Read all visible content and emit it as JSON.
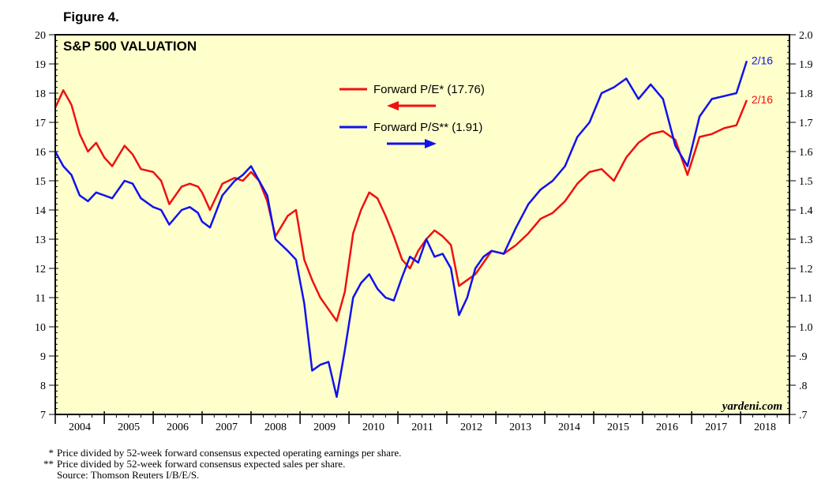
{
  "figure_label": "Figure 4.",
  "watermark": "yardeni.com",
  "colors": {
    "background": "#ffffcc",
    "pe": "#ee1111",
    "ps": "#1111ee",
    "frame": "#000000"
  },
  "footnotes": {
    "pe_mark": "*",
    "pe": "Price divided by 52-week forward consensus expected operating earnings per share.",
    "ps_mark": "**",
    "ps": "Price divided by 52-week forward consensus expected sales per share.",
    "source": "Source: Thomson Reuters I/B/E/S."
  },
  "chart_data": {
    "type": "line",
    "title": "S&P 500 VALUATION",
    "x_range": [
      "2004-01-01",
      "2019-01-01"
    ],
    "x_tick_labels": [
      "2004",
      "2005",
      "2006",
      "2007",
      "2008",
      "2009",
      "2010",
      "2011",
      "2012",
      "2013",
      "2014",
      "2015",
      "2016",
      "2017",
      "2018"
    ],
    "left_axis": {
      "range": [
        7,
        20
      ],
      "tick_labels": [
        "7",
        "8",
        "9",
        "10",
        "11",
        "12",
        "13",
        "14",
        "15",
        "16",
        "17",
        "18",
        "19",
        "20"
      ]
    },
    "right_axis": {
      "range": [
        0.7,
        2.0
      ],
      "tick_labels": [
        ".7",
        ".8",
        ".9",
        "1.0",
        "1.1",
        "1.2",
        "1.3",
        "1.4",
        "1.5",
        "1.6",
        "1.7",
        "1.8",
        "1.9",
        "2.0"
      ]
    },
    "legend_position": "top-center",
    "series": [
      {
        "name": "Forward P/E* (17.76)",
        "axis": "left",
        "end_label": "2/16",
        "points": [
          [
            "2004-01-01",
            17.5
          ],
          [
            "2004-03-01",
            18.1
          ],
          [
            "2004-05-01",
            17.6
          ],
          [
            "2004-07-01",
            16.6
          ],
          [
            "2004-09-01",
            16.0
          ],
          [
            "2004-11-01",
            16.3
          ],
          [
            "2005-01-01",
            15.8
          ],
          [
            "2005-03-01",
            15.5
          ],
          [
            "2005-06-01",
            16.2
          ],
          [
            "2005-08-01",
            15.9
          ],
          [
            "2005-10-01",
            15.4
          ],
          [
            "2006-01-01",
            15.3
          ],
          [
            "2006-03-01",
            15.0
          ],
          [
            "2006-05-01",
            14.2
          ],
          [
            "2006-08-01",
            14.8
          ],
          [
            "2006-10-01",
            14.9
          ],
          [
            "2006-12-01",
            14.8
          ],
          [
            "2007-01-01",
            14.6
          ],
          [
            "2007-03-01",
            14.0
          ],
          [
            "2007-06-01",
            14.9
          ],
          [
            "2007-09-01",
            15.1
          ],
          [
            "2007-11-01",
            15.0
          ],
          [
            "2008-01-01",
            15.3
          ],
          [
            "2008-03-01",
            15.0
          ],
          [
            "2008-05-01",
            14.3
          ],
          [
            "2008-07-01",
            13.1
          ],
          [
            "2008-10-01",
            13.8
          ],
          [
            "2008-12-01",
            14.0
          ],
          [
            "2009-02-01",
            12.3
          ],
          [
            "2009-04-01",
            11.6
          ],
          [
            "2009-06-01",
            11.0
          ],
          [
            "2009-08-01",
            10.6
          ],
          [
            "2009-10-01",
            10.2
          ],
          [
            "2009-12-01",
            11.2
          ],
          [
            "2010-02-01",
            13.2
          ],
          [
            "2010-04-01",
            14.0
          ],
          [
            "2010-06-01",
            14.6
          ],
          [
            "2010-08-01",
            14.4
          ],
          [
            "2010-10-01",
            13.8
          ],
          [
            "2010-12-01",
            13.1
          ],
          [
            "2011-02-01",
            12.3
          ],
          [
            "2011-04-01",
            12.0
          ],
          [
            "2011-06-01",
            12.6
          ],
          [
            "2011-08-01",
            13.0
          ],
          [
            "2011-10-01",
            13.3
          ],
          [
            "2011-12-01",
            13.1
          ],
          [
            "2012-02-01",
            12.8
          ],
          [
            "2012-04-01",
            11.4
          ],
          [
            "2012-06-01",
            11.6
          ],
          [
            "2012-08-01",
            11.8
          ],
          [
            "2012-10-01",
            12.2
          ],
          [
            "2012-12-01",
            12.6
          ],
          [
            "2013-03-01",
            12.5
          ],
          [
            "2013-06-01",
            12.8
          ],
          [
            "2013-09-01",
            13.2
          ],
          [
            "2013-12-01",
            13.7
          ],
          [
            "2014-03-01",
            13.9
          ],
          [
            "2014-06-01",
            14.3
          ],
          [
            "2014-09-01",
            14.9
          ],
          [
            "2014-12-01",
            15.3
          ],
          [
            "2015-03-01",
            15.4
          ],
          [
            "2015-06-01",
            15.0
          ],
          [
            "2015-09-01",
            15.8
          ],
          [
            "2015-12-01",
            16.3
          ],
          [
            "2016-03-01",
            16.6
          ],
          [
            "2016-06-01",
            16.7
          ],
          [
            "2016-09-01",
            16.4
          ],
          [
            "2016-12-01",
            15.2
          ],
          [
            "2017-03-01",
            16.5
          ],
          [
            "2017-06-01",
            16.6
          ],
          [
            "2017-09-01",
            16.8
          ],
          [
            "2017-12-01",
            16.9
          ],
          [
            "2018-02-16",
            17.76
          ]
        ]
      },
      {
        "name": "Forward P/S** (1.91)",
        "axis": "right",
        "end_label": "2/16",
        "points": [
          [
            "2004-01-01",
            1.6
          ],
          [
            "2004-03-01",
            1.55
          ],
          [
            "2004-05-01",
            1.52
          ],
          [
            "2004-07-01",
            1.45
          ],
          [
            "2004-09-01",
            1.43
          ],
          [
            "2004-11-01",
            1.46
          ],
          [
            "2005-01-01",
            1.45
          ],
          [
            "2005-03-01",
            1.44
          ],
          [
            "2005-06-01",
            1.5
          ],
          [
            "2005-08-01",
            1.49
          ],
          [
            "2005-10-01",
            1.44
          ],
          [
            "2006-01-01",
            1.41
          ],
          [
            "2006-03-01",
            1.4
          ],
          [
            "2006-05-01",
            1.35
          ],
          [
            "2006-08-01",
            1.4
          ],
          [
            "2006-10-01",
            1.41
          ],
          [
            "2006-12-01",
            1.39
          ],
          [
            "2007-01-01",
            1.36
          ],
          [
            "2007-03-01",
            1.34
          ],
          [
            "2007-06-01",
            1.45
          ],
          [
            "2007-09-01",
            1.5
          ],
          [
            "2007-11-01",
            1.52
          ],
          [
            "2008-01-01",
            1.55
          ],
          [
            "2008-03-01",
            1.5
          ],
          [
            "2008-05-01",
            1.45
          ],
          [
            "2008-07-01",
            1.3
          ],
          [
            "2008-10-01",
            1.26
          ],
          [
            "2008-12-01",
            1.23
          ],
          [
            "2009-02-01",
            1.08
          ],
          [
            "2009-04-01",
            0.85
          ],
          [
            "2009-06-01",
            0.87
          ],
          [
            "2009-08-01",
            0.88
          ],
          [
            "2009-10-01",
            0.76
          ],
          [
            "2009-12-01",
            0.92
          ],
          [
            "2010-02-01",
            1.1
          ],
          [
            "2010-04-01",
            1.15
          ],
          [
            "2010-06-01",
            1.18
          ],
          [
            "2010-08-01",
            1.13
          ],
          [
            "2010-10-01",
            1.1
          ],
          [
            "2010-12-01",
            1.09
          ],
          [
            "2011-02-01",
            1.17
          ],
          [
            "2011-04-01",
            1.24
          ],
          [
            "2011-06-01",
            1.22
          ],
          [
            "2011-08-01",
            1.3
          ],
          [
            "2011-10-01",
            1.24
          ],
          [
            "2011-12-01",
            1.25
          ],
          [
            "2012-02-01",
            1.2
          ],
          [
            "2012-04-01",
            1.04
          ],
          [
            "2012-06-01",
            1.1
          ],
          [
            "2012-08-01",
            1.2
          ],
          [
            "2012-10-01",
            1.24
          ],
          [
            "2012-12-01",
            1.26
          ],
          [
            "2013-03-01",
            1.25
          ],
          [
            "2013-06-01",
            1.34
          ],
          [
            "2013-09-01",
            1.42
          ],
          [
            "2013-12-01",
            1.47
          ],
          [
            "2014-03-01",
            1.5
          ],
          [
            "2014-06-01",
            1.55
          ],
          [
            "2014-09-01",
            1.65
          ],
          [
            "2014-12-01",
            1.7
          ],
          [
            "2015-03-01",
            1.8
          ],
          [
            "2015-06-01",
            1.82
          ],
          [
            "2015-09-01",
            1.85
          ],
          [
            "2015-12-01",
            1.78
          ],
          [
            "2016-03-01",
            1.83
          ],
          [
            "2016-06-01",
            1.78
          ],
          [
            "2016-09-01",
            1.62
          ],
          [
            "2016-12-01",
            1.55
          ],
          [
            "2017-03-01",
            1.72
          ],
          [
            "2017-06-01",
            1.78
          ],
          [
            "2017-09-01",
            1.79
          ],
          [
            "2017-12-01",
            1.8
          ],
          [
            "2018-02-16",
            1.91
          ]
        ]
      }
    ]
  }
}
